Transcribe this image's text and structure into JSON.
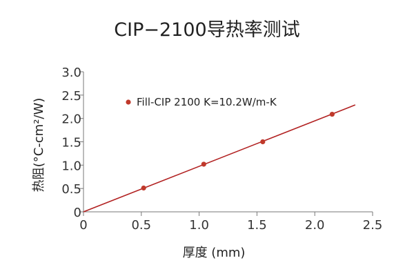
{
  "chart_data": {
    "type": "scatter",
    "title": "CIP−2100导热率测试",
    "xlabel": "厚度 (mm)",
    "ylabel": "热阻(°C-cm²/W)",
    "xlim": [
      0,
      2.5
    ],
    "ylim": [
      0,
      3.0
    ],
    "x_ticks": [
      "0",
      "0.5",
      "1.0",
      "1.5",
      "2.0",
      "2.5"
    ],
    "y_ticks": [
      "0",
      "0.5",
      "1.0",
      "1.5",
      "2.0",
      "2.5",
      "3.0"
    ],
    "x_tick_values": [
      0,
      0.5,
      1.0,
      1.5,
      2.0,
      2.5
    ],
    "y_tick_values": [
      0,
      0.5,
      1.0,
      1.5,
      2.0,
      2.5,
      3.0
    ],
    "grid": false,
    "legend_position": "top-left",
    "series": [
      {
        "name": "Fill-CIP 2100 K=10.2W/m-K",
        "color": "#c0392b",
        "x": [
          0.52,
          1.04,
          1.55,
          2.15
        ],
        "y": [
          0.51,
          1.02,
          1.5,
          2.09
        ]
      }
    ],
    "trendline": {
      "color": "#b22222",
      "x": [
        0,
        2.35
      ],
      "y": [
        0,
        2.29
      ]
    }
  }
}
